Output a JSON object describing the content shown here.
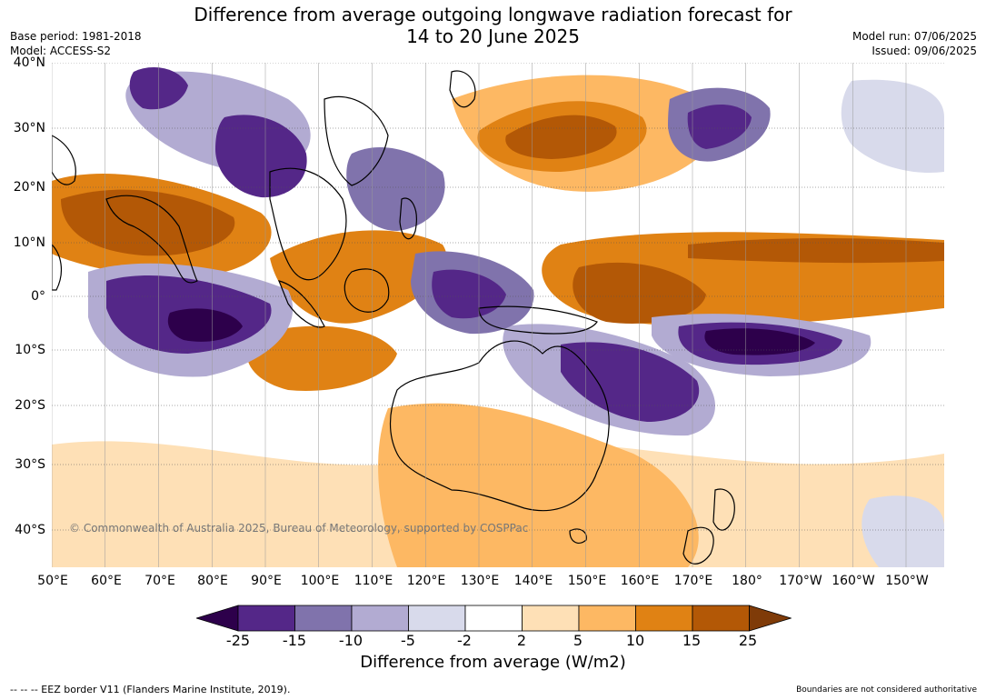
{
  "header": {
    "title_line1": "Difference from average outgoing longwave radiation forecast for",
    "title_line2": "14 to 20 June 2025",
    "base_period": "Base period: 1981-2018",
    "model": "Model: ACCESS-S2",
    "model_run": "Model run: 07/06/2025",
    "issued": "Issued: 09/06/2025"
  },
  "map": {
    "lat_labels": [
      "40°N",
      "30°N",
      "20°N",
      "10°N",
      "0°",
      "10°S",
      "20°S",
      "30°S",
      "40°S"
    ],
    "lon_labels": [
      "50°E",
      "60°E",
      "70°E",
      "80°E",
      "90°E",
      "100°E",
      "110°E",
      "120°E",
      "130°E",
      "140°E",
      "150°E",
      "160°E",
      "170°E",
      "180°",
      "170°W",
      "160°W",
      "150°W"
    ],
    "copyright": "© Commonwealth of Australia 2025, Bureau of Meteorology, supported by COSPPac"
  },
  "colorbar": {
    "ticks": [
      "-25",
      "-15",
      "-10",
      "-5",
      "-2",
      "2",
      "5",
      "10",
      "15",
      "25"
    ],
    "colors": [
      "#2d004b",
      "#542788",
      "#8073ac",
      "#b2abd2",
      "#d8daeb",
      "#ffffff",
      "#fee0b6",
      "#fdb863",
      "#e08214",
      "#b35806",
      "#7f3b08"
    ],
    "title": "Difference from average (W/m2)"
  },
  "footer": {
    "eez_note": "--  --  -- EEZ border V11 (Flanders Marine Institute, 2019).",
    "boundaries_note": "Boundaries are not considered authoritative"
  }
}
